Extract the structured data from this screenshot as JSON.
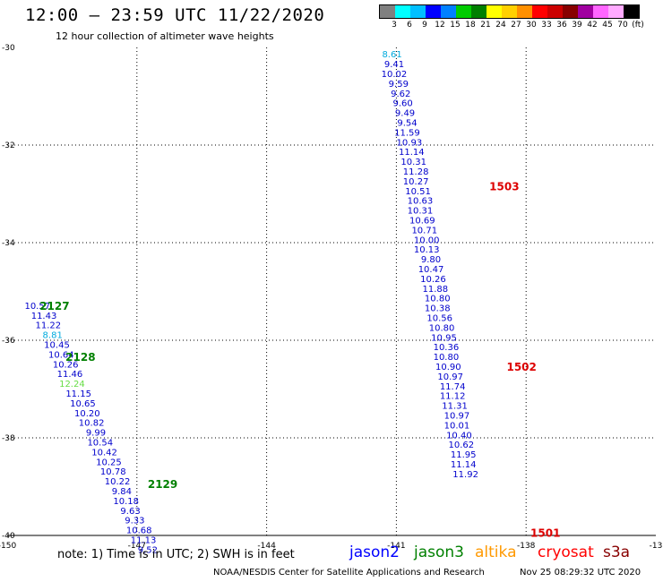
{
  "header": {
    "title": "12:00 – 23:59 UTC 11/22/2020",
    "subtitle": "12 hour collection of altimeter wave heights"
  },
  "legend": {
    "colors": [
      "#808080",
      "#00ffff",
      "#00bfff",
      "#0000ff",
      "#0080ff",
      "#00cc00",
      "#008000",
      "#ffff00",
      "#ffd000",
      "#ff9000",
      "#ff0000",
      "#cc0000",
      "#880000",
      "#a000a0",
      "#ff66ff",
      "#ffaaff",
      "#000000"
    ],
    "labels": [
      "3",
      "6",
      "9",
      "12",
      "15",
      "18",
      "21",
      "24",
      "27",
      "30",
      "33",
      "36",
      "39",
      "42",
      "45",
      "70",
      "(ft)"
    ]
  },
  "chart_data": {
    "type": "scatter",
    "lon_range": [
      -150,
      -135
    ],
    "lat_range": [
      -40,
      -30
    ],
    "x_ticks": [
      "-150",
      "-147",
      "-144",
      "-141",
      "-138",
      "-13"
    ],
    "y_ticks": [
      "-30",
      "-32",
      "-34",
      "-36",
      "-38",
      "-40"
    ],
    "passes": [
      {
        "id": "1503",
        "color": "#dd0000",
        "lat": -32.85,
        "lon": -138.85
      },
      {
        "id": "1502",
        "color": "#dd0000",
        "lat": -36.55,
        "lon": -138.45
      },
      {
        "id": "1501",
        "color": "#dd0000",
        "lat": -39.95,
        "lon": -137.9
      },
      {
        "id": "2127",
        "color": "#008000",
        "lat": -35.3,
        "lon": -149.25
      },
      {
        "id": "2128",
        "color": "#008000",
        "lat": -36.35,
        "lon": -148.65
      },
      {
        "id": "2129",
        "color": "#008000",
        "lat": -38.95,
        "lon": -146.75
      }
    ],
    "points": [
      {
        "v": "8.61",
        "lat": -30.15,
        "lon": -141.1,
        "c": "#00aadd"
      },
      {
        "v": "9.41",
        "lat": -30.35,
        "lon": -141.05,
        "c": "#0000cc"
      },
      {
        "v": "10.02",
        "lat": -30.55,
        "lon": -141.05,
        "c": "#0000cc"
      },
      {
        "v": "9.59",
        "lat": -30.75,
        "lon": -140.95,
        "c": "#0000cc"
      },
      {
        "v": "9.62",
        "lat": -30.95,
        "lon": -140.9,
        "c": "#0000cc"
      },
      {
        "v": "9.60",
        "lat": -31.15,
        "lon": -140.85,
        "c": "#0000cc"
      },
      {
        "v": "9.49",
        "lat": -31.35,
        "lon": -140.8,
        "c": "#0000cc"
      },
      {
        "v": "9.54",
        "lat": -31.55,
        "lon": -140.75,
        "c": "#0000cc"
      },
      {
        "v": "11.59",
        "lat": -31.75,
        "lon": -140.75,
        "c": "#0000cc"
      },
      {
        "v": "10.93",
        "lat": -31.95,
        "lon": -140.7,
        "c": "#0000cc"
      },
      {
        "v": "11.14",
        "lat": -32.15,
        "lon": -140.65,
        "c": "#0000cc"
      },
      {
        "v": "10.31",
        "lat": -32.35,
        "lon": -140.6,
        "c": "#0000cc"
      },
      {
        "v": "11.28",
        "lat": -32.55,
        "lon": -140.55,
        "c": "#0000cc"
      },
      {
        "v": "10.27",
        "lat": -32.75,
        "lon": -140.55,
        "c": "#0000cc"
      },
      {
        "v": "10.51",
        "lat": -32.95,
        "lon": -140.5,
        "c": "#0000cc"
      },
      {
        "v": "10.63",
        "lat": -33.15,
        "lon": -140.45,
        "c": "#0000cc"
      },
      {
        "v": "10.31",
        "lat": -33.35,
        "lon": -140.45,
        "c": "#0000cc"
      },
      {
        "v": "10.69",
        "lat": -33.55,
        "lon": -140.4,
        "c": "#0000cc"
      },
      {
        "v": "10.71",
        "lat": -33.75,
        "lon": -140.35,
        "c": "#0000cc"
      },
      {
        "v": "10.00",
        "lat": -33.95,
        "lon": -140.3,
        "c": "#0000cc"
      },
      {
        "v": "10.13",
        "lat": -34.15,
        "lon": -140.3,
        "c": "#0000cc"
      },
      {
        "v": "9.80",
        "lat": -34.35,
        "lon": -140.2,
        "c": "#0000cc"
      },
      {
        "v": "10.47",
        "lat": -34.55,
        "lon": -140.2,
        "c": "#0000cc"
      },
      {
        "v": "10.26",
        "lat": -34.75,
        "lon": -140.15,
        "c": "#0000cc"
      },
      {
        "v": "11.88",
        "lat": -34.95,
        "lon": -140.1,
        "c": "#0000cc"
      },
      {
        "v": "10.80",
        "lat": -35.15,
        "lon": -140.05,
        "c": "#0000cc"
      },
      {
        "v": "10.38",
        "lat": -35.35,
        "lon": -140.05,
        "c": "#0000cc"
      },
      {
        "v": "10.56",
        "lat": -35.55,
        "lon": -140.0,
        "c": "#0000cc"
      },
      {
        "v": "10.80",
        "lat": -35.75,
        "lon": -139.95,
        "c": "#0000cc"
      },
      {
        "v": "10.95",
        "lat": -35.95,
        "lon": -139.9,
        "c": "#0000cc"
      },
      {
        "v": "10.36",
        "lat": -36.15,
        "lon": -139.85,
        "c": "#0000cc"
      },
      {
        "v": "10.80",
        "lat": -36.35,
        "lon": -139.85,
        "c": "#0000cc"
      },
      {
        "v": "10.90",
        "lat": -36.55,
        "lon": -139.8,
        "c": "#0000cc"
      },
      {
        "v": "10.97",
        "lat": -36.75,
        "lon": -139.75,
        "c": "#0000cc"
      },
      {
        "v": "11.74",
        "lat": -36.95,
        "lon": -139.7,
        "c": "#0000cc"
      },
      {
        "v": "11.12",
        "lat": -37.15,
        "lon": -139.7,
        "c": "#0000cc"
      },
      {
        "v": "11.31",
        "lat": -37.35,
        "lon": -139.65,
        "c": "#0000cc"
      },
      {
        "v": "10.97",
        "lat": -37.55,
        "lon": -139.6,
        "c": "#0000cc"
      },
      {
        "v": "10.01",
        "lat": -37.75,
        "lon": -139.6,
        "c": "#0000cc"
      },
      {
        "v": "10.40",
        "lat": -37.95,
        "lon": -139.55,
        "c": "#0000cc"
      },
      {
        "v": "10.62",
        "lat": -38.15,
        "lon": -139.5,
        "c": "#0000cc"
      },
      {
        "v": "11.95",
        "lat": -38.35,
        "lon": -139.45,
        "c": "#0000cc"
      },
      {
        "v": "11.14",
        "lat": -38.55,
        "lon": -139.45,
        "c": "#0000cc"
      },
      {
        "v": "11.92",
        "lat": -38.75,
        "lon": -139.4,
        "c": "#0000cc"
      },
      {
        "v": "10.57",
        "lat": -35.3,
        "lon": -149.3,
        "c": "#0000cc"
      },
      {
        "v": "11.43",
        "lat": -35.5,
        "lon": -149.15,
        "c": "#0000cc"
      },
      {
        "v": "11.22",
        "lat": -35.7,
        "lon": -149.05,
        "c": "#0000cc"
      },
      {
        "v": "8.81",
        "lat": -35.9,
        "lon": -148.95,
        "c": "#00aadd"
      },
      {
        "v": "10.45",
        "lat": -36.1,
        "lon": -148.85,
        "c": "#0000cc"
      },
      {
        "v": "10.64",
        "lat": -36.3,
        "lon": -148.75,
        "c": "#0000cc"
      },
      {
        "v": "10.26",
        "lat": -36.5,
        "lon": -148.65,
        "c": "#0000cc"
      },
      {
        "v": "11.46",
        "lat": -36.7,
        "lon": -148.55,
        "c": "#0000cc"
      },
      {
        "v": "12.24",
        "lat": -36.9,
        "lon": -148.5,
        "c": "#66dd44"
      },
      {
        "v": "11.15",
        "lat": -37.1,
        "lon": -148.35,
        "c": "#0000cc"
      },
      {
        "v": "10.65",
        "lat": -37.3,
        "lon": -148.25,
        "c": "#0000cc"
      },
      {
        "v": "10.20",
        "lat": -37.5,
        "lon": -148.15,
        "c": "#0000cc"
      },
      {
        "v": "10.82",
        "lat": -37.7,
        "lon": -148.05,
        "c": "#0000cc"
      },
      {
        "v": "9.99",
        "lat": -37.9,
        "lon": -147.95,
        "c": "#0000cc"
      },
      {
        "v": "10.54",
        "lat": -38.1,
        "lon": -147.85,
        "c": "#0000cc"
      },
      {
        "v": "10.42",
        "lat": -38.3,
        "lon": -147.75,
        "c": "#0000cc"
      },
      {
        "v": "10.25",
        "lat": -38.5,
        "lon": -147.65,
        "c": "#0000cc"
      },
      {
        "v": "10.78",
        "lat": -38.7,
        "lon": -147.55,
        "c": "#0000cc"
      },
      {
        "v": "10.22",
        "lat": -38.9,
        "lon": -147.45,
        "c": "#0000cc"
      },
      {
        "v": "9.84",
        "lat": -39.1,
        "lon": -147.35,
        "c": "#0000cc"
      },
      {
        "v": "10.18",
        "lat": -39.3,
        "lon": -147.25,
        "c": "#0000cc"
      },
      {
        "v": "9.63",
        "lat": -39.5,
        "lon": -147.15,
        "c": "#0000cc"
      },
      {
        "v": "9.33",
        "lat": -39.7,
        "lon": -147.05,
        "c": "#0000cc"
      },
      {
        "v": "10.68",
        "lat": -39.9,
        "lon": -146.95,
        "c": "#0000cc"
      },
      {
        "v": "11.13",
        "lat": -40.1,
        "lon": -146.85,
        "c": "#0000cc"
      },
      {
        "v": "9.52",
        "lat": -40.3,
        "lon": -146.75,
        "c": "#0000cc"
      }
    ]
  },
  "footer": {
    "note": "note:  1) Time is in UTC;  2) SWH is in feet",
    "satellites": [
      {
        "name": "jason2",
        "color": "#0000ff"
      },
      {
        "name": "jason3",
        "color": "#008000"
      },
      {
        "name": "altika",
        "color": "#ff9900"
      },
      {
        "name": "cryosat",
        "color": "#ff0000"
      },
      {
        "name": "s3a",
        "color": "#880000"
      }
    ],
    "credit": "NOAA/NESDIS Center for Satellite Applications and Research",
    "timestamp": "Nov 25 08:29:32 UTC 2020"
  }
}
